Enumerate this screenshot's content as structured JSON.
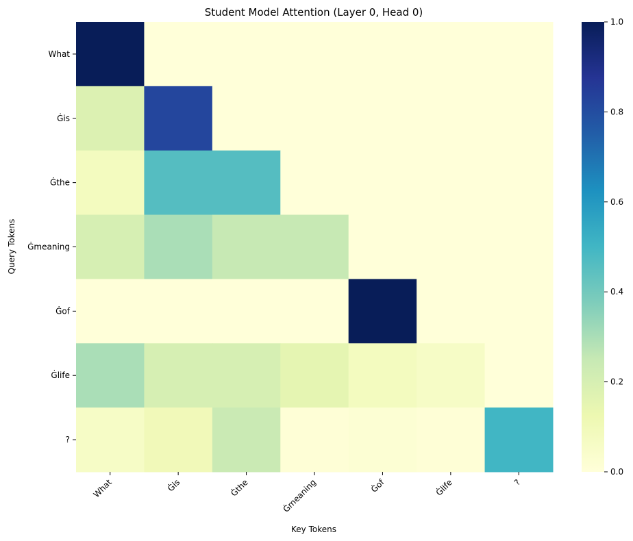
{
  "chart_data": {
    "type": "heatmap",
    "title": "Student Model Attention (Layer 0, Head 0)",
    "xlabel": "Key Tokens",
    "ylabel": "Query Tokens",
    "x_tokens": [
      "What",
      "Ġis",
      "Ġthe",
      "Ġmeaning",
      "Ġof",
      "Ġlife",
      "?"
    ],
    "y_tokens": [
      "What",
      "Ġis",
      "Ġthe",
      "Ġmeaning",
      "Ġof",
      "Ġlife",
      "?"
    ],
    "values": [
      [
        1.0,
        0.0,
        0.0,
        0.0,
        0.0,
        0.0,
        0.0
      ],
      [
        0.18,
        0.82,
        0.0,
        0.0,
        0.0,
        0.0,
        0.0
      ],
      [
        0.08,
        0.46,
        0.46,
        0.0,
        0.0,
        0.0,
        0.0
      ],
      [
        0.2,
        0.3,
        0.25,
        0.25,
        0.0,
        0.0,
        0.0
      ],
      [
        0.0,
        0.0,
        0.0,
        0.0,
        1.0,
        0.0,
        0.0
      ],
      [
        0.3,
        0.2,
        0.2,
        0.15,
        0.08,
        0.06,
        0.0
      ],
      [
        0.06,
        0.1,
        0.24,
        0.01,
        0.02,
        0.01,
        0.5
      ]
    ],
    "colormap": "YlGnBu",
    "vmin": 0.0,
    "vmax": 1.0,
    "colorbar_ticks": [
      "0.0",
      "0.2",
      "0.4",
      "0.6",
      "0.8",
      "1.0"
    ]
  }
}
